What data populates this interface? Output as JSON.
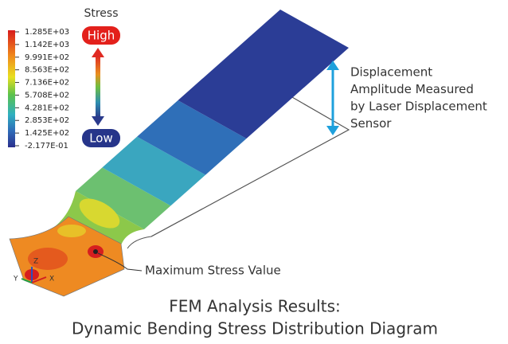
{
  "legend": {
    "title": "Stress",
    "high": "High",
    "low": "Low",
    "values": [
      "1.285E+03",
      "1.142E+03",
      "9.991E+02",
      "8.563E+02",
      "7.136E+02",
      "5.708E+02",
      "4.281E+02",
      "2.853E+02",
      "1.425E+02",
      "-2.177E-01"
    ]
  },
  "annotations": {
    "displacement": [
      "Displacement",
      "Amplitude Measured",
      "by Laser Displacement",
      "Sensor"
    ],
    "max_stress": "Maximum Stress Value"
  },
  "axes": {
    "z": "Z",
    "y": "Y",
    "x": "X"
  },
  "caption": [
    "FEM Analysis Results:",
    "Dynamic Bending Stress Distribution Diagram"
  ]
}
